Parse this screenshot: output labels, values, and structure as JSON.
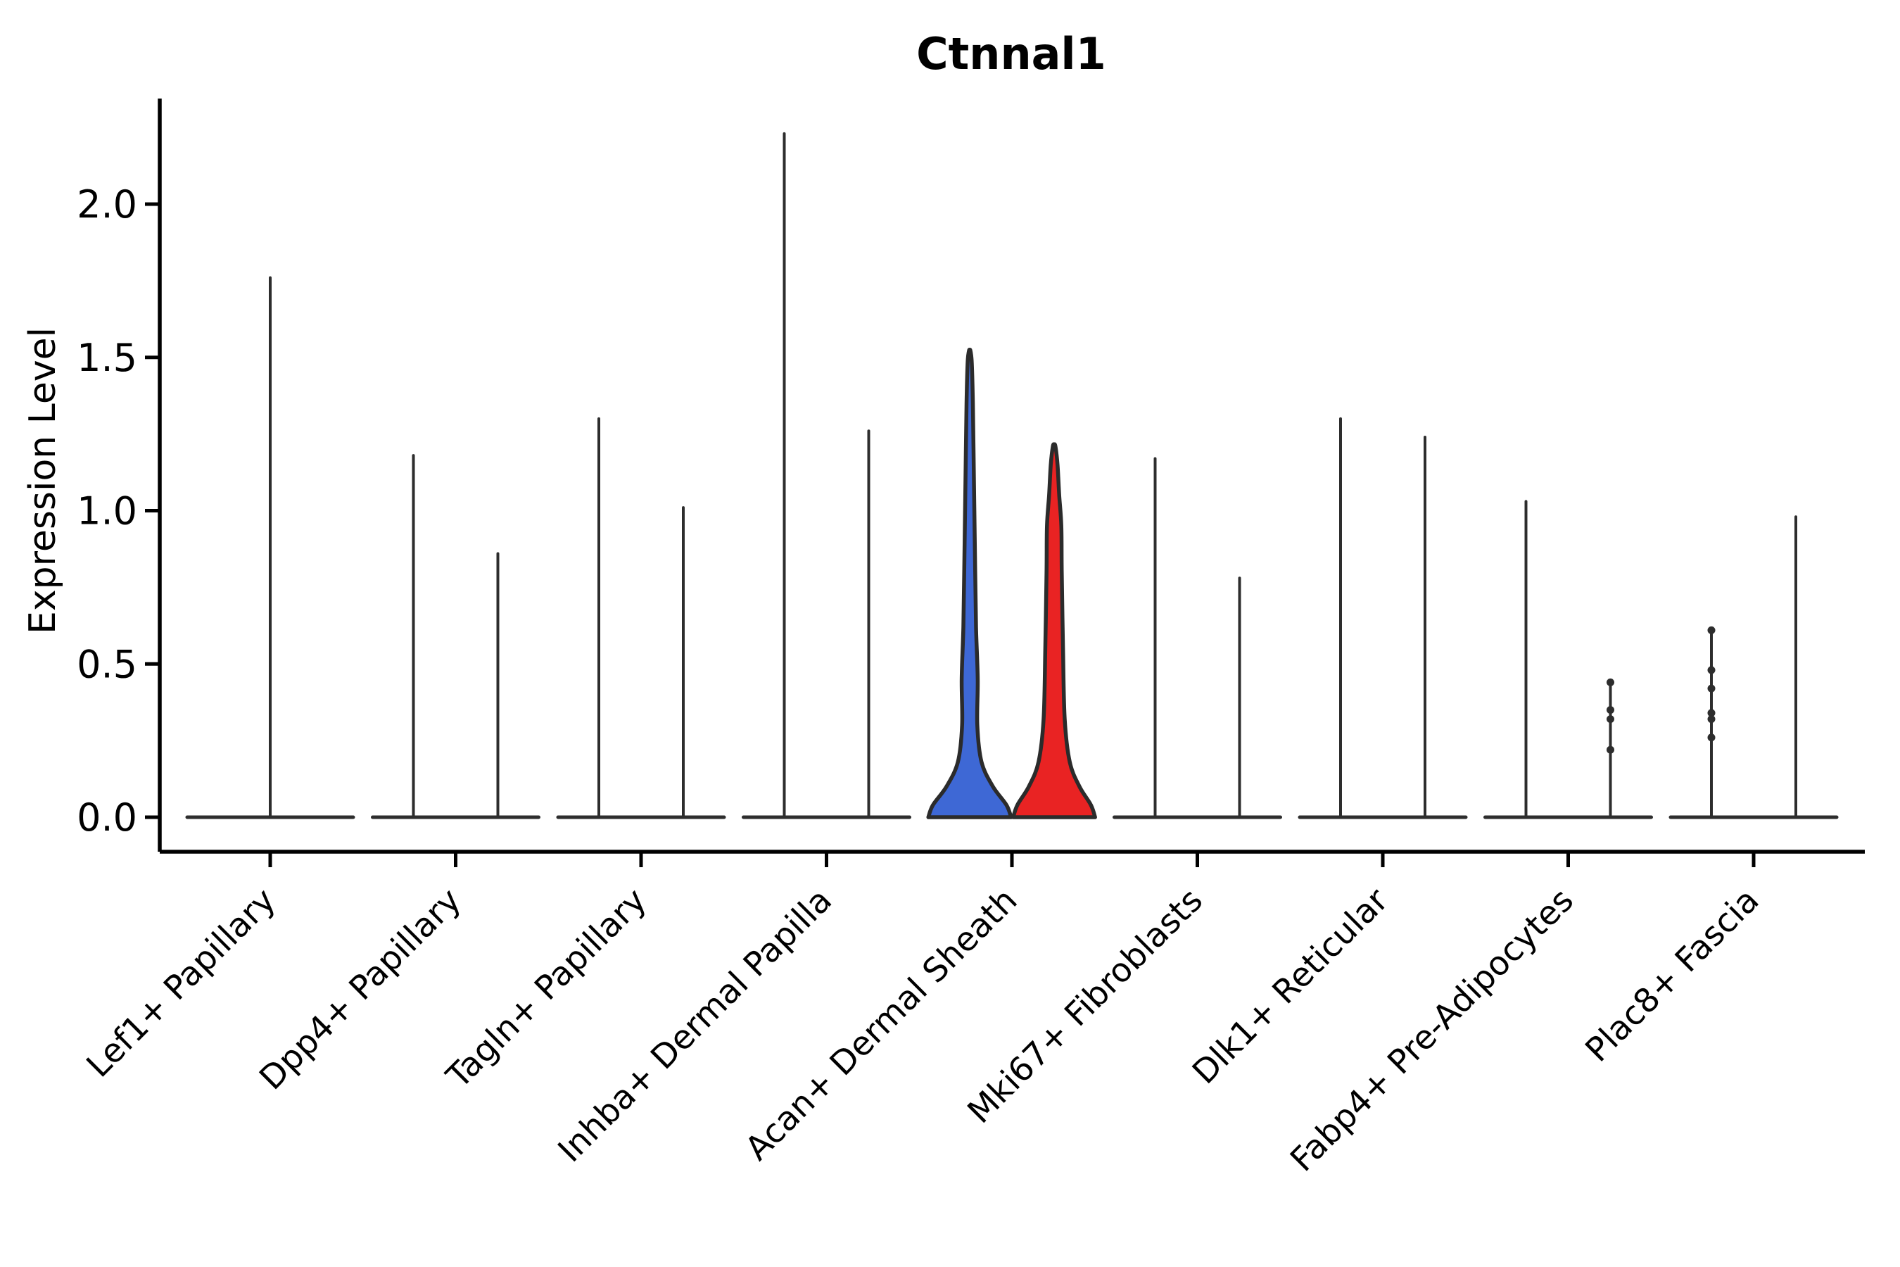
{
  "chart_data": {
    "type": "violin",
    "title": "Ctnnal1",
    "ylabel": "Expression Level",
    "yticks": [
      "0.0",
      "0.5",
      "1.0",
      "1.5",
      "2.0"
    ],
    "ytick_values": [
      0.0,
      0.5,
      1.0,
      1.5,
      2.0
    ],
    "ylim": [
      -0.11,
      2.34
    ],
    "grid": "off",
    "legend": "none",
    "categories": [
      "Lef1+ Papillary",
      "Dpp4+ Papillary",
      "Tagln+ Papillary",
      "Inhba+ Dermal Papilla",
      "Acan+ Dermal Sheath",
      "Mki67+ Fibroblasts",
      "Dlk1+ Reticular",
      "Fabp4+ Pre-Adipocytes",
      "Plac8+ Fascia"
    ],
    "split_colors": {
      "left": "#3E68D5",
      "right": "#E92323"
    },
    "line_color": "#2d2d2d",
    "violins": [
      {
        "cat": 0,
        "position": "center",
        "style": "spike",
        "max": 1.76,
        "dots": []
      },
      {
        "cat": 1,
        "position": "left",
        "style": "spike",
        "max": 1.18,
        "dots": []
      },
      {
        "cat": 1,
        "position": "right",
        "style": "spike",
        "max": 0.86,
        "dots": []
      },
      {
        "cat": 2,
        "position": "left",
        "style": "spike",
        "max": 1.3,
        "dots": []
      },
      {
        "cat": 2,
        "position": "right",
        "style": "spike",
        "max": 1.01,
        "dots": []
      },
      {
        "cat": 3,
        "position": "left",
        "style": "spike",
        "max": 2.23,
        "dots": []
      },
      {
        "cat": 3,
        "position": "right",
        "style": "spike",
        "max": 1.26,
        "dots": []
      },
      {
        "cat": 4,
        "position": "left",
        "style": "filled",
        "max": 1.52,
        "fill": "#3E68D5",
        "profile": [
          [
            0,
            0.98
          ],
          [
            0.04,
            0.87
          ],
          [
            0.1,
            0.55
          ],
          [
            0.18,
            0.28
          ],
          [
            0.3,
            0.18
          ],
          [
            0.45,
            0.19
          ],
          [
            0.62,
            0.15
          ],
          [
            0.85,
            0.125
          ],
          [
            1.1,
            0.1
          ],
          [
            1.35,
            0.075
          ],
          [
            1.48,
            0.05
          ],
          [
            1.52,
            0.02
          ]
        ]
      },
      {
        "cat": 4,
        "position": "right",
        "style": "filled",
        "max": 1.21,
        "fill": "#E92323",
        "profile": [
          [
            0,
            0.97
          ],
          [
            0.04,
            0.87
          ],
          [
            0.1,
            0.6
          ],
          [
            0.18,
            0.37
          ],
          [
            0.32,
            0.25
          ],
          [
            0.55,
            0.21
          ],
          [
            0.8,
            0.18
          ],
          [
            0.95,
            0.17
          ],
          [
            1.05,
            0.12
          ],
          [
            1.15,
            0.08
          ],
          [
            1.21,
            0.03
          ]
        ]
      },
      {
        "cat": 5,
        "position": "left",
        "style": "spike",
        "max": 1.17,
        "dots": []
      },
      {
        "cat": 5,
        "position": "right",
        "style": "spike",
        "max": 0.78,
        "dots": []
      },
      {
        "cat": 6,
        "position": "left",
        "style": "spike",
        "max": 1.3,
        "dots": []
      },
      {
        "cat": 6,
        "position": "right",
        "style": "spike",
        "max": 1.24,
        "dots": []
      },
      {
        "cat": 7,
        "position": "left",
        "style": "spike",
        "max": 1.03,
        "dots": []
      },
      {
        "cat": 7,
        "position": "right",
        "style": "spike",
        "max": 0.44,
        "dots": [
          0.44,
          0.35,
          0.32,
          0.22
        ]
      },
      {
        "cat": 8,
        "position": "left",
        "style": "spike",
        "max": 0.61,
        "dots": [
          0.61,
          0.48,
          0.42,
          0.34,
          0.32,
          0.26
        ]
      },
      {
        "cat": 8,
        "position": "right",
        "style": "spike",
        "max": 0.98,
        "dots": []
      }
    ]
  }
}
